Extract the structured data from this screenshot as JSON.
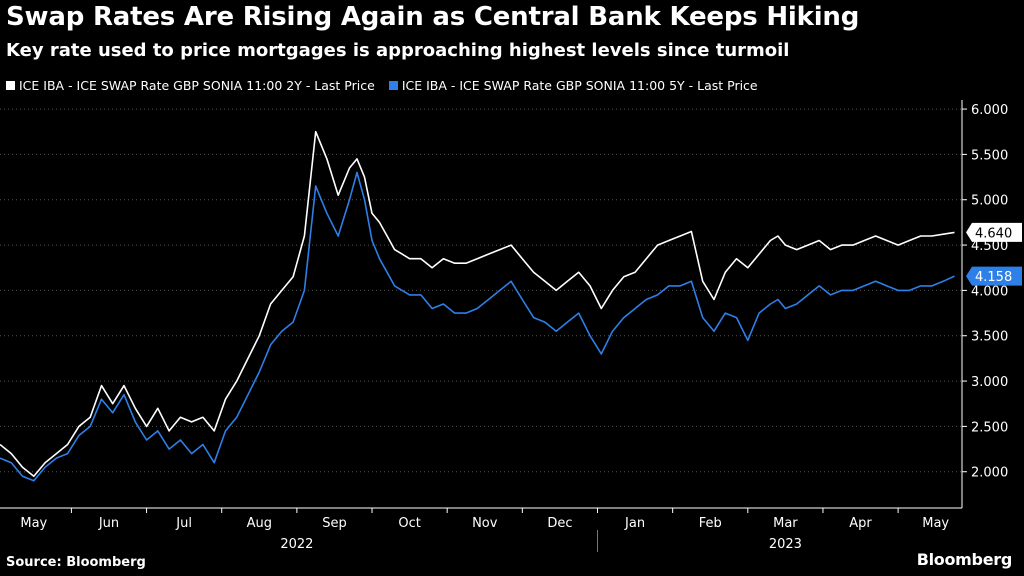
{
  "title": "Swap Rates Are Rising Again as Central Bank Keeps Hiking",
  "subtitle": "Key rate used to price mortgages is approaching highest levels since turmoil",
  "source": "Source: Bloomberg",
  "brand": "Bloomberg",
  "colors": {
    "series_2y": "#ffffff",
    "series_5y": "#2e7fe8",
    "grid": "#555555",
    "background": "#000000"
  },
  "chart_data": {
    "type": "line",
    "title": "Swap Rates Are Rising Again as Central Bank Keeps Hiking",
    "subtitle": "Key rate used to price mortgages is approaching highest levels since turmoil",
    "xlabel": "",
    "ylabel": "",
    "ylim": [
      1.6,
      6.1
    ],
    "yticks": [
      "2.000",
      "2.500",
      "3.000",
      "3.500",
      "4.000",
      "4.500",
      "5.000",
      "5.500",
      "6.000"
    ],
    "ytick_values": [
      2.0,
      2.5,
      3.0,
      3.5,
      4.0,
      4.5,
      5.0,
      5.5,
      6.0
    ],
    "x_months": [
      "May",
      "Jun",
      "Jul",
      "Aug",
      "Sep",
      "Oct",
      "Nov",
      "Dec",
      "Jan",
      "Feb",
      "Mar",
      "Apr",
      "May"
    ],
    "x_years": [
      "2022",
      "2023"
    ],
    "x_range_months": [
      -0.45,
      12.35
    ],
    "grid": "horizontal dotted",
    "legend_position": "top-left",
    "series": [
      {
        "name": "ICE IBA - ICE SWAP Rate GBP SONIA 11:00 2Y - Last Price",
        "last_value": "4.640",
        "x": [
          -0.45,
          -0.3,
          -0.15,
          0.0,
          0.15,
          0.3,
          0.45,
          0.6,
          0.75,
          0.9,
          1.05,
          1.2,
          1.35,
          1.5,
          1.65,
          1.8,
          1.95,
          2.1,
          2.25,
          2.4,
          2.55,
          2.7,
          2.85,
          3.0,
          3.15,
          3.3,
          3.45,
          3.6,
          3.75,
          3.9,
          4.05,
          4.2,
          4.3,
          4.4,
          4.5,
          4.6,
          4.7,
          4.8,
          4.9,
          5.0,
          5.15,
          5.3,
          5.45,
          5.6,
          5.75,
          5.9,
          6.05,
          6.2,
          6.35,
          6.5,
          6.65,
          6.8,
          6.95,
          7.1,
          7.25,
          7.4,
          7.55,
          7.7,
          7.85,
          8.0,
          8.15,
          8.3,
          8.45,
          8.6,
          8.75,
          8.9,
          9.05,
          9.2,
          9.35,
          9.5,
          9.65,
          9.8,
          9.9,
          10.0,
          10.15,
          10.3,
          10.45,
          10.6,
          10.75,
          10.9,
          11.05,
          11.2,
          11.35,
          11.5,
          11.65,
          11.8,
          11.95,
          12.1,
          12.25
        ],
        "values": [
          2.3,
          2.2,
          2.05,
          1.95,
          2.1,
          2.2,
          2.3,
          2.5,
          2.6,
          2.95,
          2.75,
          2.95,
          2.7,
          2.5,
          2.7,
          2.45,
          2.6,
          2.55,
          2.6,
          2.45,
          2.8,
          3.0,
          3.25,
          3.5,
          3.85,
          4.0,
          4.15,
          4.6,
          5.75,
          5.45,
          5.05,
          5.35,
          5.45,
          5.25,
          4.85,
          4.75,
          4.6,
          4.45,
          4.4,
          4.35,
          4.35,
          4.25,
          4.35,
          4.3,
          4.3,
          4.35,
          4.4,
          4.45,
          4.5,
          4.35,
          4.2,
          4.1,
          4.0,
          4.1,
          4.2,
          4.05,
          3.8,
          4.0,
          4.15,
          4.2,
          4.35,
          4.5,
          4.55,
          4.6,
          4.65,
          4.1,
          3.9,
          4.2,
          4.35,
          4.25,
          4.4,
          4.55,
          4.6,
          4.5,
          4.45,
          4.5,
          4.55,
          4.45,
          4.5,
          4.5,
          4.55,
          4.6,
          4.55,
          4.5,
          4.55,
          4.6,
          4.6,
          4.62,
          4.64
        ]
      },
      {
        "name": "ICE IBA - ICE SWAP Rate GBP SONIA 11:00 5Y - Last Price",
        "last_value": "4.158",
        "x": [
          -0.45,
          -0.3,
          -0.15,
          0.0,
          0.15,
          0.3,
          0.45,
          0.6,
          0.75,
          0.9,
          1.05,
          1.2,
          1.35,
          1.5,
          1.65,
          1.8,
          1.95,
          2.1,
          2.25,
          2.4,
          2.55,
          2.7,
          2.85,
          3.0,
          3.15,
          3.3,
          3.45,
          3.6,
          3.75,
          3.9,
          4.05,
          4.2,
          4.3,
          4.4,
          4.5,
          4.6,
          4.7,
          4.8,
          4.9,
          5.0,
          5.15,
          5.3,
          5.45,
          5.6,
          5.75,
          5.9,
          6.05,
          6.2,
          6.35,
          6.5,
          6.65,
          6.8,
          6.95,
          7.1,
          7.25,
          7.4,
          7.55,
          7.7,
          7.85,
          8.0,
          8.15,
          8.3,
          8.45,
          8.6,
          8.75,
          8.9,
          9.05,
          9.2,
          9.35,
          9.5,
          9.65,
          9.8,
          9.9,
          10.0,
          10.15,
          10.3,
          10.45,
          10.6,
          10.75,
          10.9,
          11.05,
          11.2,
          11.35,
          11.5,
          11.65,
          11.8,
          11.95,
          12.1,
          12.25
        ],
        "values": [
          2.15,
          2.1,
          1.95,
          1.9,
          2.05,
          2.15,
          2.2,
          2.4,
          2.5,
          2.8,
          2.65,
          2.85,
          2.55,
          2.35,
          2.45,
          2.25,
          2.35,
          2.2,
          2.3,
          2.1,
          2.45,
          2.6,
          2.85,
          3.1,
          3.4,
          3.55,
          3.65,
          4.0,
          5.15,
          4.85,
          4.6,
          5.0,
          5.3,
          5.0,
          4.55,
          4.35,
          4.2,
          4.05,
          4.0,
          3.95,
          3.95,
          3.8,
          3.85,
          3.75,
          3.75,
          3.8,
          3.9,
          4.0,
          4.1,
          3.9,
          3.7,
          3.65,
          3.55,
          3.65,
          3.75,
          3.5,
          3.3,
          3.55,
          3.7,
          3.8,
          3.9,
          3.95,
          4.05,
          4.05,
          4.1,
          3.7,
          3.55,
          3.75,
          3.7,
          3.45,
          3.75,
          3.85,
          3.9,
          3.8,
          3.85,
          3.95,
          4.05,
          3.95,
          4.0,
          4.0,
          4.05,
          4.1,
          4.05,
          4.0,
          4.0,
          4.05,
          4.05,
          4.1,
          4.158
        ]
      }
    ]
  }
}
